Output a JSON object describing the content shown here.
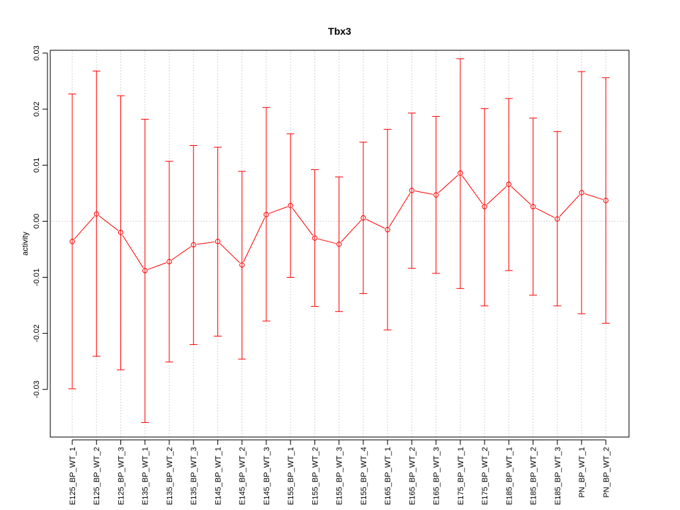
{
  "chart_data": {
    "type": "line",
    "title": "Tbx3",
    "xlabel": "",
    "ylabel": "activity",
    "ylim": [
      -0.0385,
      0.0305
    ],
    "yticks": [
      "-0.03",
      "-0.02",
      "-0.01",
      "0.00",
      "0.01",
      "0.02",
      "0.03"
    ],
    "grid": true,
    "error_bars": true,
    "colors": {
      "series": "#ff0000",
      "grid": "#d3d3d3",
      "axis": "#000000"
    },
    "categories": [
      "E125_BP_WT_1",
      "E125_BP_WT_2",
      "E125_BP_WT_3",
      "E135_BP_WT_1",
      "E135_BP_WT_2",
      "E135_BP_WT_3",
      "E145_BP_WT_1",
      "E145_BP_WT_2",
      "E145_BP_WT_3",
      "E155_BP_WT_1",
      "E155_BP_WT_2",
      "E155_BP_WT_3",
      "E155_BP_WT_4",
      "E165_BP_WT_1",
      "E165_BP_WT_2",
      "E165_BP_WT_3",
      "E175_BP_WT_1",
      "E175_BP_WT_2",
      "E185_BP_WT_1",
      "E185_BP_WT_2",
      "E185_BP_WT_3",
      "PN_BP_WT_1",
      "PN_BP_WT_2"
    ],
    "series": [
      {
        "values": [
          -0.0036,
          0.0013,
          -0.002,
          -0.0088,
          -0.0072,
          -0.0042,
          -0.0036,
          -0.0078,
          0.0012,
          0.0028,
          -0.003,
          -0.0041,
          0.0006,
          -0.0015,
          0.0055,
          0.0047,
          0.0086,
          0.0026,
          0.0066,
          0.0026,
          0.0004,
          0.0051,
          0.0037
        ],
        "upper": [
          0.0227,
          0.0268,
          0.0224,
          0.0182,
          0.0107,
          0.0135,
          0.0132,
          0.0089,
          0.0203,
          0.0156,
          0.0092,
          0.0079,
          0.0141,
          0.0164,
          0.0193,
          0.0187,
          0.029,
          0.0201,
          0.0219,
          0.0184,
          0.016,
          0.0267,
          0.0256
        ],
        "lower": [
          -0.0299,
          -0.0241,
          -0.0265,
          -0.0359,
          -0.0251,
          -0.022,
          -0.0205,
          -0.0246,
          -0.0178,
          -0.01,
          -0.0152,
          -0.0161,
          -0.0129,
          -0.0194,
          -0.0084,
          -0.0093,
          -0.012,
          -0.0151,
          -0.0088,
          -0.0132,
          -0.0151,
          -0.0165,
          -0.0182
        ]
      }
    ]
  }
}
